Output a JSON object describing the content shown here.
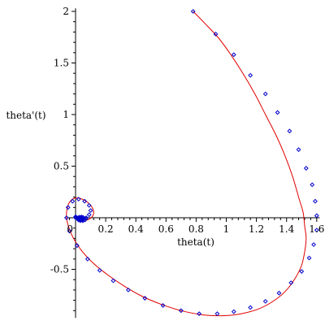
{
  "chart_data": {
    "type": "line",
    "xlabel": "theta(t)",
    "ylabel": "theta'(t)",
    "xlim": [
      -0.05,
      1.62
    ],
    "ylim": [
      -0.97,
      2.03
    ],
    "x_ticks": [
      {
        "value": 0.2,
        "label": "0.2"
      },
      {
        "value": 0.4,
        "label": "0.4"
      },
      {
        "value": 0.6,
        "label": "0.6"
      },
      {
        "value": 0.8,
        "label": "0.8"
      },
      {
        "value": 1.0,
        "label": "1"
      },
      {
        "value": 1.2,
        "label": "1.2"
      },
      {
        "value": 1.4,
        "label": "1.4"
      },
      {
        "value": 1.6,
        "label": "1.6"
      }
    ],
    "origin_label": "0",
    "y_ticks": [
      {
        "value": 2.0,
        "label": "2"
      },
      {
        "value": 1.5,
        "label": "1.5"
      },
      {
        "value": 1.0,
        "label": "1"
      },
      {
        "value": 0.5,
        "label": "0.5"
      },
      {
        "value": -0.5,
        "label": "-0.5"
      }
    ],
    "series": [
      {
        "style": "line",
        "color": "#e00000",
        "x": [
          0.78,
          0.86,
          0.95,
          1.03,
          1.11,
          1.19,
          1.26,
          1.33,
          1.39,
          1.44,
          1.48,
          1.51,
          1.52,
          1.53,
          1.52,
          1.5,
          1.46,
          1.4,
          1.32,
          1.22,
          1.1,
          0.97,
          0.84,
          0.7,
          0.57,
          0.44,
          0.32,
          0.21,
          0.11,
          0.03,
          -0.03,
          -0.06,
          -0.05,
          -0.02,
          0.02,
          0.07,
          0.11,
          0.12,
          0.11,
          0.08,
          0.05,
          0.02,
          0.01,
          0.0
        ],
        "y": [
          2.0,
          1.88,
          1.74,
          1.58,
          1.4,
          1.2,
          1.0,
          0.8,
          0.6,
          0.4,
          0.2,
          0.05,
          -0.08,
          -0.2,
          -0.33,
          -0.46,
          -0.58,
          -0.7,
          -0.8,
          -0.88,
          -0.93,
          -0.95,
          -0.94,
          -0.9,
          -0.84,
          -0.76,
          -0.66,
          -0.55,
          -0.43,
          -0.3,
          -0.15,
          0.0,
          0.12,
          0.18,
          0.19,
          0.16,
          0.1,
          0.05,
          0.01,
          -0.02,
          -0.02,
          -0.01,
          0.0,
          0.0
        ]
      },
      {
        "style": "points",
        "color": "#0000cc",
        "x": [
          0.78,
          0.93,
          1.05,
          1.16,
          1.26,
          1.34,
          1.42,
          1.48,
          1.53,
          1.57,
          1.59,
          1.6,
          1.6,
          1.58,
          1.55,
          1.5,
          1.43,
          1.35,
          1.26,
          1.16,
          1.05,
          0.94,
          0.82,
          0.7,
          0.58,
          0.46,
          0.35,
          0.25,
          0.16,
          0.08,
          0.01,
          -0.04,
          -0.06,
          -0.05,
          -0.02,
          0.02,
          0.06,
          0.09,
          0.1,
          0.09,
          0.07,
          0.05,
          0.03,
          0.02,
          0.01,
          0.0,
          0.0
        ],
        "y": [
          2.0,
          1.78,
          1.58,
          1.38,
          1.2,
          1.02,
          0.84,
          0.66,
          0.48,
          0.32,
          0.16,
          0.02,
          -0.12,
          -0.26,
          -0.39,
          -0.52,
          -0.63,
          -0.73,
          -0.81,
          -0.87,
          -0.91,
          -0.93,
          -0.93,
          -0.9,
          -0.85,
          -0.78,
          -0.7,
          -0.61,
          -0.51,
          -0.4,
          -0.27,
          -0.13,
          0.0,
          0.1,
          0.16,
          0.18,
          0.16,
          0.12,
          0.07,
          0.03,
          0.0,
          -0.02,
          -0.02,
          -0.01,
          0.0,
          0.01,
          0.0
        ]
      }
    ]
  }
}
